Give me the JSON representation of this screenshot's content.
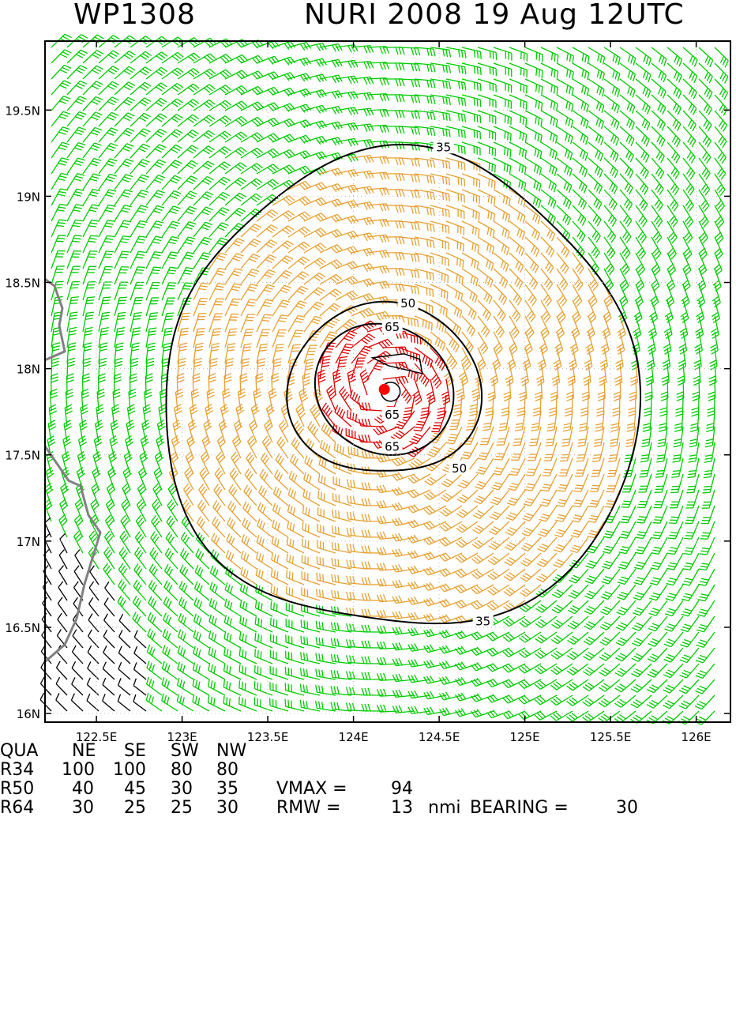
{
  "header": {
    "storm_id": "WP1308",
    "storm_title": "NURI 2008 19 Aug 12UTC"
  },
  "chart_data": {
    "type": "wind field map",
    "x_ticks": [
      "122.5E",
      "123E",
      "123.5E",
      "124E",
      "124.5E",
      "125E",
      "125.5E",
      "126E"
    ],
    "y_ticks": [
      "16N",
      "16.5N",
      "17N",
      "17.5N",
      "18N",
      "18.5N",
      "19N",
      "19.5N"
    ],
    "xlim": [
      122.2,
      126.2
    ],
    "ylim": [
      15.95,
      19.9
    ],
    "center": {
      "lon": 124.18,
      "lat": 17.88
    },
    "contour_labels": [
      "35",
      "50",
      "65"
    ],
    "contours": [
      {
        "level": 35,
        "labels": [
          "35",
          "35"
        ]
      },
      {
        "level": 50,
        "labels": [
          "50",
          "50"
        ]
      },
      {
        "level": 65,
        "labels": [
          "65",
          "65",
          "65"
        ]
      }
    ],
    "colors": {
      "wind_34": "#00cc00",
      "wind_50": "#e6a030",
      "wind_64": "#e00000",
      "land": "#808080",
      "contour": "#000000",
      "center": "#ff0000"
    }
  },
  "wind_radii_table": {
    "header": [
      "QUA",
      "NE",
      "SE",
      "SW",
      "NW"
    ],
    "rows": [
      {
        "label": "R34",
        "values": [
          "100",
          "100",
          "80",
          "80"
        ]
      },
      {
        "label": "R50",
        "values": [
          "40",
          "45",
          "30",
          "35"
        ]
      },
      {
        "label": "R64",
        "values": [
          "30",
          "25",
          "25",
          "30"
        ]
      }
    ],
    "vmax_label": "VMAX =",
    "vmax_value": "94",
    "rmw_label": "RMW =",
    "rmw_value": "13",
    "rmw_unit": "nmi",
    "bearing_label": "BEARING =",
    "bearing_value": "30"
  }
}
